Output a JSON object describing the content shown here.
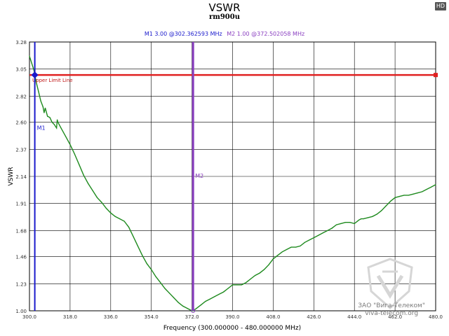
{
  "title": "VSWR",
  "subtitle": "rm900u",
  "badge": "HD",
  "markers_header": {
    "m1": "M1  3.00 @302.362593 MHz",
    "m2": "M2  1.00 @372.502058 MHz"
  },
  "colors": {
    "curve": "#1e8a1e",
    "limit": "#e02020",
    "m1": "#1a1acc",
    "m2": "#8a3fc0",
    "grid": "#000000"
  },
  "chart_data": {
    "type": "line",
    "title": "VSWR",
    "subtitle": "rm900u",
    "xlabel": "Frequency (300.000000 - 480.000000 MHz)",
    "ylabel": "VSWR",
    "xlim": [
      300,
      480
    ],
    "ylim": [
      1.0,
      3.28
    ],
    "x_ticks": [
      "300.0",
      "318.0",
      "336.0",
      "354.0",
      "372.0",
      "390.0",
      "408.0",
      "426.0",
      "444.0",
      "462.0",
      "480.0"
    ],
    "y_ticks": [
      "1.00",
      "1.23",
      "1.46",
      "1.68",
      "1.91",
      "2.14",
      "2.37",
      "2.60",
      "2.82",
      "3.05",
      "3.28"
    ],
    "grid": true,
    "upper_limit": {
      "label": "Upper Limit Line",
      "value": 3.0
    },
    "markers": [
      {
        "name": "M1",
        "freq": 302.362593,
        "value": 3.0
      },
      {
        "name": "M2",
        "freq": 372.502058,
        "value": 1.0
      }
    ],
    "series": [
      {
        "name": "VSWR",
        "x": [
          300.0,
          301.0,
          302.0,
          302.4,
          303.0,
          304.0,
          305.0,
          306.0,
          306.5,
          307.0,
          308.0,
          309.0,
          310.0,
          311.0,
          312.0,
          312.3,
          312.6,
          314.0,
          316.0,
          318.0,
          320.0,
          322.0,
          324.0,
          326.0,
          328.0,
          330.0,
          332.0,
          334.0,
          336.0,
          338.0,
          340.0,
          342.0,
          344.0,
          346.0,
          348.0,
          350.0,
          352.0,
          354.0,
          356.0,
          358.0,
          360.0,
          362.0,
          364.0,
          366.0,
          368.0,
          370.0,
          372.0,
          372.5,
          374.0,
          376.0,
          378.0,
          380.0,
          382.0,
          384.0,
          386.0,
          388.0,
          390.0,
          392.0,
          394.0,
          396.0,
          398.0,
          400.0,
          402.0,
          404.0,
          406.0,
          408.0,
          410.0,
          412.0,
          414.0,
          416.0,
          418.0,
          420.0,
          422.0,
          424.0,
          426.0,
          428.0,
          430.0,
          432.0,
          434.0,
          436.0,
          438.0,
          440.0,
          442.0,
          444.0,
          446.0,
          447.0,
          448.0,
          450.0,
          452.0,
          454.0,
          456.0,
          458.0,
          460.0,
          462.0,
          464.0,
          466.0,
          468.0,
          470.0,
          472.0,
          474.0,
          476.0,
          478.0,
          480.0
        ],
        "values": [
          3.16,
          3.1,
          3.04,
          3.0,
          2.94,
          2.86,
          2.78,
          2.73,
          2.68,
          2.72,
          2.65,
          2.64,
          2.6,
          2.58,
          2.55,
          2.62,
          2.6,
          2.55,
          2.48,
          2.41,
          2.33,
          2.24,
          2.15,
          2.08,
          2.02,
          1.96,
          1.92,
          1.87,
          1.83,
          1.8,
          1.78,
          1.76,
          1.71,
          1.63,
          1.55,
          1.47,
          1.4,
          1.35,
          1.29,
          1.24,
          1.19,
          1.15,
          1.11,
          1.07,
          1.04,
          1.02,
          1.0,
          1.0,
          1.02,
          1.05,
          1.08,
          1.1,
          1.12,
          1.14,
          1.16,
          1.19,
          1.22,
          1.22,
          1.22,
          1.24,
          1.27,
          1.3,
          1.32,
          1.35,
          1.39,
          1.44,
          1.47,
          1.5,
          1.52,
          1.54,
          1.54,
          1.55,
          1.58,
          1.6,
          1.62,
          1.64,
          1.66,
          1.68,
          1.7,
          1.73,
          1.74,
          1.75,
          1.75,
          1.74,
          1.77,
          1.78,
          1.78,
          1.79,
          1.8,
          1.82,
          1.85,
          1.89,
          1.93,
          1.96,
          1.97,
          1.98,
          1.98,
          1.99,
          2.0,
          2.01,
          2.03,
          2.05,
          2.07
        ]
      }
    ]
  },
  "watermark": {
    "line1": "ЗАО \"Вига-Телеком\"",
    "line2": "viva-telecom.org"
  }
}
